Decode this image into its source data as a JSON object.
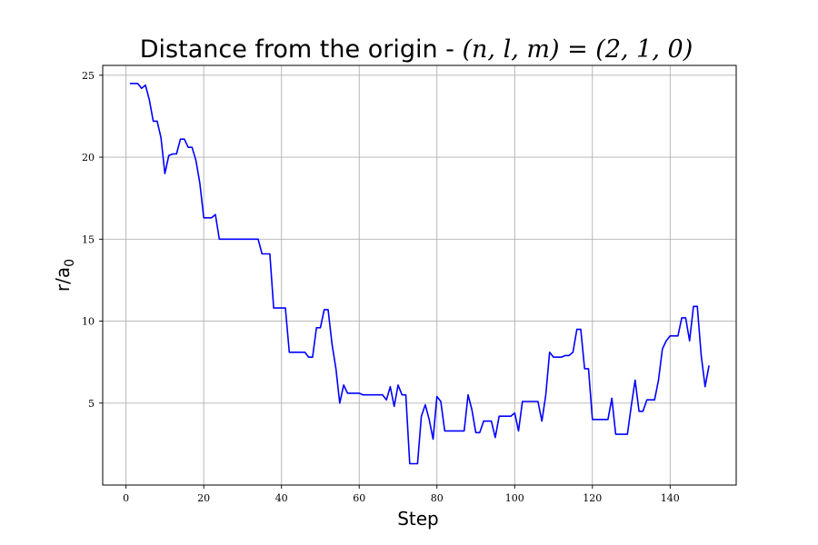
{
  "chart_data": {
    "type": "line",
    "title": "Distance from the origin - ",
    "title_math": "(n, l, m) = (2, 1, 0)",
    "xlabel": "Step",
    "ylabel": "r/a",
    "ylabel_subscript": "0",
    "xlim": [
      -6,
      157
    ],
    "ylim": [
      0,
      25.6
    ],
    "xticks": [
      0,
      20,
      40,
      60,
      80,
      100,
      120,
      140
    ],
    "yticks": [
      5,
      10,
      15,
      20,
      25
    ],
    "grid": true,
    "series": [
      {
        "color": "#0000ff",
        "x": [
          1,
          2,
          3,
          4,
          5,
          6,
          7,
          8,
          9,
          10,
          11,
          12,
          13,
          14,
          15,
          16,
          17,
          18,
          19,
          20,
          21,
          22,
          23,
          24,
          25,
          26,
          27,
          28,
          29,
          30,
          31,
          32,
          33,
          34,
          35,
          36,
          37,
          38,
          39,
          40,
          41,
          42,
          43,
          44,
          45,
          46,
          47,
          48,
          49,
          50,
          51,
          52,
          53,
          54,
          55,
          56,
          57,
          58,
          59,
          60,
          61,
          62,
          63,
          64,
          65,
          66,
          67,
          68,
          69,
          70,
          71,
          72,
          73,
          74,
          75,
          76,
          77,
          78,
          79,
          80,
          81,
          82,
          83,
          84,
          85,
          86,
          87,
          88,
          89,
          90,
          91,
          92,
          93,
          94,
          95,
          96,
          97,
          98,
          99,
          100,
          101,
          102,
          103,
          104,
          105,
          106,
          107,
          108,
          109,
          110,
          111,
          112,
          113,
          114,
          115,
          116,
          117,
          118,
          119,
          120,
          121,
          122,
          123,
          124,
          125,
          126,
          127,
          128,
          129,
          130,
          131,
          132,
          133,
          134,
          135,
          136,
          137,
          138,
          139,
          140,
          141,
          142,
          143,
          144,
          145,
          146,
          147,
          148,
          149,
          150
        ],
        "y": [
          24.5,
          24.5,
          24.5,
          24.2,
          24.4,
          23.5,
          22.2,
          22.2,
          21.2,
          19.0,
          20.1,
          20.2,
          20.2,
          21.1,
          21.1,
          20.6,
          20.6,
          19.8,
          18.4,
          16.3,
          16.3,
          16.3,
          16.5,
          15.0,
          15.0,
          15.0,
          15.0,
          15.0,
          15.0,
          15.0,
          15.0,
          15.0,
          15.0,
          15.0,
          14.1,
          14.1,
          14.1,
          10.8,
          10.8,
          10.8,
          10.8,
          8.1,
          8.1,
          8.1,
          8.1,
          8.1,
          7.8,
          7.8,
          9.6,
          9.6,
          10.7,
          10.7,
          8.6,
          7.1,
          5.0,
          6.1,
          5.6,
          5.6,
          5.6,
          5.6,
          5.5,
          5.5,
          5.5,
          5.5,
          5.5,
          5.5,
          5.2,
          6.0,
          4.8,
          6.1,
          5.5,
          5.5,
          1.3,
          1.3,
          1.3,
          4.2,
          4.9,
          4.0,
          2.8,
          5.4,
          5.1,
          3.3,
          3.3,
          3.3,
          3.3,
          3.3,
          3.3,
          5.5,
          4.6,
          3.2,
          3.2,
          3.9,
          3.9,
          3.9,
          2.9,
          4.2,
          4.2,
          4.2,
          4.2,
          4.4,
          3.3,
          5.1,
          5.1,
          5.1,
          5.1,
          5.1,
          3.9,
          5.5,
          8.1,
          7.8,
          7.8,
          7.8,
          7.9,
          7.9,
          8.1,
          9.5,
          9.5,
          7.1,
          7.1,
          4.0,
          4.0,
          4.0,
          4.0,
          4.0,
          5.3,
          3.1,
          3.1,
          3.1,
          3.1,
          4.8,
          6.4,
          4.5,
          4.5,
          5.2,
          5.2,
          5.2,
          6.4,
          8.3,
          8.8,
          9.1,
          9.1,
          9.1,
          10.2,
          10.2,
          8.8,
          10.9,
          10.9,
          7.9,
          6.0,
          7.3
        ]
      }
    ]
  }
}
